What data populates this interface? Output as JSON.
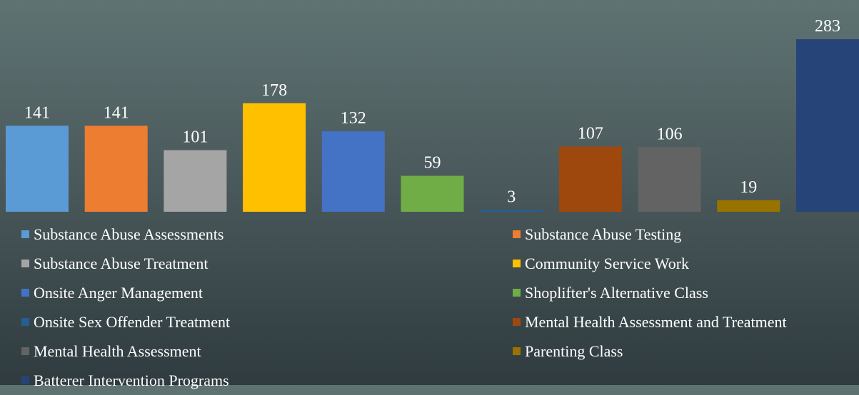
{
  "chart_data": {
    "type": "bar",
    "ylim": [
      0,
      300
    ],
    "series": [
      {
        "name": "Substance Abuse Assessments",
        "value": 141,
        "color": "#5b9bd5"
      },
      {
        "name": "Substance Abuse Testing",
        "value": 141,
        "color": "#ed7d31"
      },
      {
        "name": "Substance Abuse Treatment",
        "value": 101,
        "color": "#a5a5a5"
      },
      {
        "name": "Community Service Work",
        "value": 178,
        "color": "#ffc000"
      },
      {
        "name": "Onsite Anger Management",
        "value": 132,
        "color": "#4472c4"
      },
      {
        "name": "Shoplifter's Alternative Class",
        "value": 59,
        "color": "#70ad47"
      },
      {
        "name": "Onsite Sex Offender Treatment",
        "value": 3,
        "color": "#255e91"
      },
      {
        "name": "Mental Health Assessment and Treatment",
        "value": 107,
        "color": "#9e480e"
      },
      {
        "name": "Mental Health Assessment",
        "value": 106,
        "color": "#636363"
      },
      {
        "name": "Parenting Class",
        "value": 19,
        "color": "#997300"
      },
      {
        "name": "Batterer Intervention Programs",
        "value": 283,
        "color": "#264478"
      }
    ],
    "legend": {
      "position": "bottom",
      "columns": 2
    }
  }
}
